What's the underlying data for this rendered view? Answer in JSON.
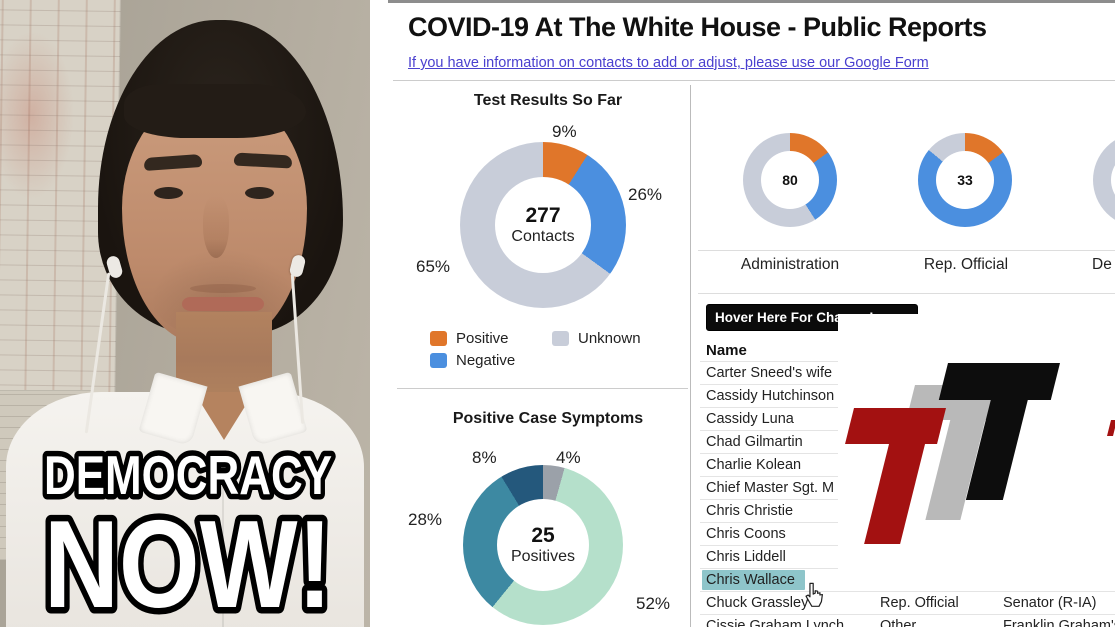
{
  "page": {
    "title": "COVID-19 At The White House - Public Reports",
    "subtitle_link": "If you have information on contacts to add or adjust, please use our Google Form"
  },
  "colors": {
    "positive_orange": "#e0762a",
    "negative_blue": "#4b8fdf",
    "unknown_gray": "#c8cdd9",
    "symptom_gray": "#9ba1a9",
    "symptom_mint": "#b5e0cb",
    "symptom_teal": "#3d89a2",
    "symptom_navy": "#24587c",
    "highlight_teal": "#8ec5ca",
    "link_blue": "#4a40cf"
  },
  "test_results": {
    "title": "Test Results So Far",
    "center_value": "277",
    "center_label": "Contacts",
    "slices": [
      {
        "pct": 9,
        "color": "#e0762a"
      },
      {
        "pct": 26,
        "color": "#4b8fdf"
      },
      {
        "pct": 65,
        "color": "#c8cdd9"
      }
    ],
    "pct_labels": {
      "positive": "9%",
      "negative": "26%",
      "unknown": "65%"
    },
    "legend": [
      {
        "label": "Positive",
        "color": "#e0762a"
      },
      {
        "label": "Unknown",
        "color": "#c8cdd9"
      },
      {
        "label": "Negative",
        "color": "#4b8fdf"
      }
    ]
  },
  "symptoms": {
    "title": "Positive Case Symptoms",
    "center_value": "25",
    "center_label": "Positives",
    "slices": [
      {
        "pct": 4,
        "color": "#9ba1a9"
      },
      {
        "pct": 52,
        "color": "#b5e0cb"
      },
      {
        "pct": 28,
        "color": "#3d89a2"
      },
      {
        "pct": 8,
        "color": "#24587c"
      }
    ],
    "pct_labels": {
      "gray": "4%",
      "mint": "52%",
      "teal": "28%",
      "navy": "8%"
    }
  },
  "mini_donuts": [
    {
      "value": "80",
      "label": "Administration",
      "slices": [
        {
          "pct": 15,
          "color": "#e0762a"
        },
        {
          "pct": 26,
          "color": "#4b8fdf"
        },
        {
          "pct": 59,
          "color": "#c8cdd9"
        }
      ]
    },
    {
      "value": "33",
      "label": "Rep. Official",
      "slices": [
        {
          "pct": 15,
          "color": "#e0762a"
        },
        {
          "pct": 71,
          "color": "#4b8fdf"
        },
        {
          "pct": 14,
          "color": "#c8cdd9"
        }
      ]
    },
    {
      "value": "",
      "label": "De",
      "slices": [
        {
          "pct": 100,
          "color": "#c8cdd9"
        }
      ]
    }
  ],
  "hover_bar": {
    "label": "Hover Here For Change Log"
  },
  "table": {
    "name_header": "Name",
    "rows": [
      {
        "name": "Carter Sneed's wife",
        "status": "",
        "detail": ""
      },
      {
        "name": "Cassidy Hutchinson",
        "status": "",
        "detail": ""
      },
      {
        "name": "Cassidy Luna",
        "status": "",
        "detail": ""
      },
      {
        "name": "Chad Gilmartin",
        "status": "",
        "detail": ""
      },
      {
        "name": "Charlie Kolean",
        "status": "",
        "detail": ""
      },
      {
        "name": "Chief Master Sgt. M",
        "status": "",
        "detail": ""
      },
      {
        "name": "Chris Christie",
        "status": "",
        "detail": ""
      },
      {
        "name": "Chris Coons",
        "status": "",
        "detail": ""
      },
      {
        "name": "Chris Liddell",
        "status": "",
        "detail": ""
      },
      {
        "name": "Chris Wallace",
        "status": "",
        "detail": "",
        "highlight": true
      },
      {
        "name": "Chuck Grassley",
        "status": "Rep. Official",
        "detail": "Senator (R-IA)"
      },
      {
        "name": "Cissie Graham Lynch",
        "status": "Other",
        "detail": "Franklin Graham's"
      }
    ]
  },
  "video": {
    "logo_line1": "DEMOCRACY",
    "logo_line2": "NOW!"
  },
  "watermark": {
    "name": "ttt-logo",
    "red": "#a31111",
    "gray": "#b9b9b9",
    "black": "#0d0d0d"
  },
  "chart_data": [
    {
      "type": "pie",
      "title": "Test Results So Far",
      "center_text": "277 Contacts",
      "labels": [
        "Positive",
        "Negative",
        "Unknown"
      ],
      "values": [
        9,
        26,
        65
      ],
      "unit": "%",
      "colors": [
        "#e0762a",
        "#4b8fdf",
        "#c8cdd9"
      ],
      "legend_position": "bottom-left"
    },
    {
      "type": "pie",
      "title": "Positive Case Symptoms",
      "center_text": "25 Positives",
      "labels": [
        "4%",
        "52%",
        "28%",
        "8%"
      ],
      "values": [
        4,
        52,
        28,
        8
      ],
      "unit": "%",
      "colors": [
        "#9ba1a9",
        "#b5e0cb",
        "#3d89a2",
        "#24587c"
      ]
    },
    {
      "type": "pie",
      "title": "Administration",
      "center_text": "80",
      "labels": [
        "Positive",
        "Negative",
        "Unknown"
      ],
      "values": [
        15,
        26,
        59
      ],
      "unit": "% (estimated from arc)",
      "colors": [
        "#e0762a",
        "#4b8fdf",
        "#c8cdd9"
      ]
    },
    {
      "type": "pie",
      "title": "Rep. Official",
      "center_text": "33",
      "labels": [
        "Positive",
        "Negative",
        "Unknown"
      ],
      "values": [
        15,
        71,
        14
      ],
      "unit": "% (estimated from arc)",
      "colors": [
        "#e0762a",
        "#4b8fdf",
        "#c8cdd9"
      ]
    }
  ]
}
